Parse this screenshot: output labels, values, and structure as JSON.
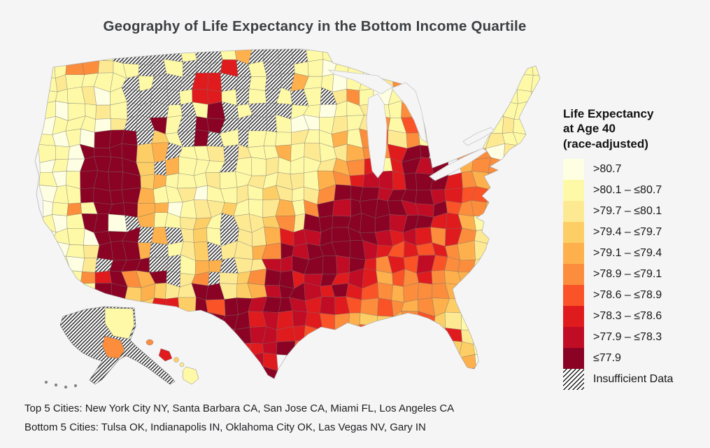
{
  "page": {
    "title": "Geography of Life Expectancy in the Bottom Income Quartile"
  },
  "legend": {
    "title_lines": [
      "Life Expectancy",
      "at Age 40",
      "(race-adjusted)"
    ],
    "insufficient_label": "Insufficient Data",
    "hatch": {
      "stripe_color": "#1b1b1b",
      "bg_color": "#ffffff"
    }
  },
  "footer": {
    "top5": "Top 5 Cities: New York City NY, Santa Barbara CA, San Jose CA, Miami FL, Los Angeles CA",
    "bottom5": "Bottom 5 Cities: Tulsa OK, Indianapolis IN, Oklahoma City OK, Las Vegas NV, Gary IN"
  },
  "chart_data": {
    "type": "heatmap",
    "subtype": "us-choropleth-commuting-zones",
    "title": "Geography of Life Expectancy in the Bottom Income Quartile",
    "legend_title": "Life Expectancy at Age 40 (race-adjusted)",
    "legend_position": "right",
    "bins": [
      {
        "label": ">80.7",
        "color": "#FEFEE2"
      },
      {
        "label": ">80.1 – ≤80.7",
        "color": "#FEF9A6"
      },
      {
        "label": ">79.7 – ≤80.1",
        "color": "#FEE993"
      },
      {
        "label": ">79.4 – ≤79.7",
        "color": "#FDCE66"
      },
      {
        "label": ">79.1 – ≤79.4",
        "color": "#FDB04B"
      },
      {
        "label": ">78.9 – ≤79.1",
        "color": "#FB8D3D"
      },
      {
        "label": ">78.6 – ≤78.9",
        "color": "#F95327"
      },
      {
        "label": ">78.3 – ≤78.6",
        "color": "#E01B1E"
      },
      {
        "label": ">77.9 – ≤78.3",
        "color": "#C10C25"
      },
      {
        "label": "≤77.9",
        "color": "#8A0324"
      }
    ],
    "insufficient_data_label": "Insufficient Data",
    "top_5_cities": [
      "New York City NY",
      "Santa Barbara CA",
      "San Jose CA",
      "Miami FL",
      "Los Angeles CA"
    ],
    "bottom_5_cities": [
      "Tulsa OK",
      "Indianapolis IN",
      "Oklahoma City OK",
      "Las Vegas NV",
      "Gary IN"
    ],
    "grid": {
      "comment": "approximate raster of the choropleth; digits 0-9 = legend bin index (0 = highest life expectancy, 9 = lowest), X = insufficient data (hatched), . = no region",
      "origin": [
        58,
        68
      ],
      "cell": 20,
      "rows": [
        "11211X XXXX1X X14XXX X11X11 10.... ......",
        "115521 1XX1XX X7X1XX 110110 11.... ....11",
        "121111 X1XXX7 7XX1XX 411011 2551.. ...211",
        "111201 XXXX17 71X1X1 X1X251 0121.. ..2111",
        "101121 XXX1X1 9X1XXX 110112 115... .21112",
        "011102 XX91X9 9XXXX1 001212 5165.2 111211",
        "101099 9X31X9 X1X111 211415 6251.5 512110",
        "110999 934X11 2X2114 121245 5799.. 550210",
        "010999 93X411 1X1121 112457 17989. 455011",
        "101999 934111 211212 214578 879997 545101",
        "011999 941120 112132 125999 899987 66521.",
        "015199 944012 231124 159899 998896 55411.",
        "101990 X41123 1X2235 299999 989977 4121..",
        "011099 9X4X23 1X2247 889999 878757 521...",
        "101299 94X123 X22459 899998 767675 421...",
        "0102X9 99XX14 4X2288 999897 576865 52....",
        "101579 549X25 X23599 789787 465754 42....",
        "..0199 343229 923489 987976 545554 3.....",
        "..015X 437739 699899 878765 654543 2.....",
        "....59 9X5249 999787 876543 345632 1.....",
        "...... ..X959 789887 765556 546437 2.....",
        "...... ...959 897789 655435 .44543 31....",
        "...... ....99 79987. 5.5.3. ..3542 40....",
        "...... .....9 ..899. ...... ...243 520...",
        "...... ...... .9.... ...... ....32 2.0..."
      ]
    }
  }
}
